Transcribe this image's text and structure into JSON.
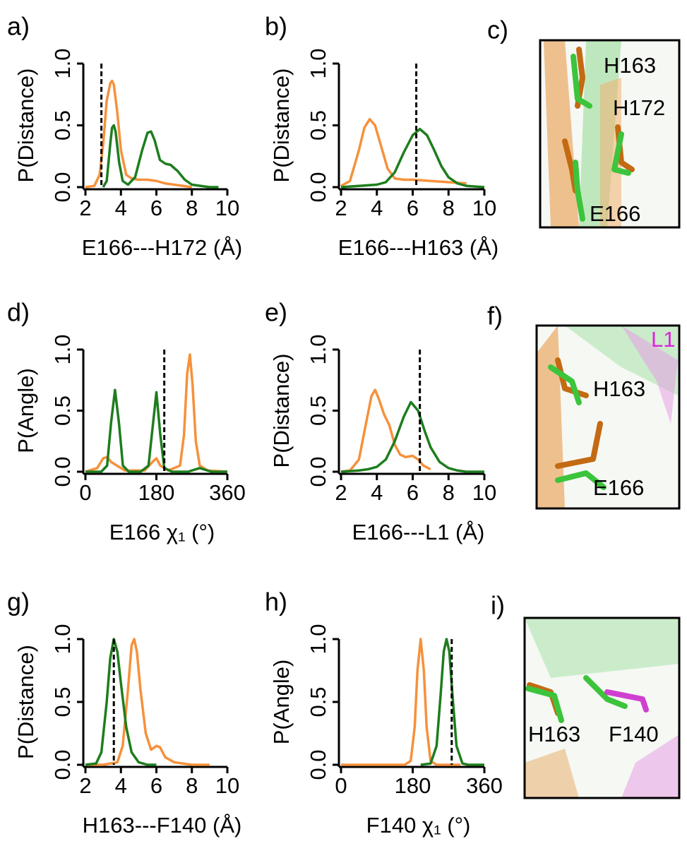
{
  "chart_data": [
    {
      "type": "line",
      "panel": "a)",
      "ylabel": "P(Distance)",
      "xlabel": "E166---H172 (Å)",
      "xlim": [
        2,
        10
      ],
      "xticks": [
        2,
        4,
        6,
        8,
        10
      ],
      "ylim": [
        0,
        1
      ],
      "yticks": [
        {
          "value": 0,
          "label": "0.0"
        },
        0.5,
        {
          "value": 1,
          "label": "1.0"
        }
      ],
      "reference_x": 2.9,
      "series": [
        {
          "color": "#f5913c",
          "x": [
            2,
            2.5,
            2.8,
            3.0,
            3.2,
            3.4,
            3.5,
            3.6,
            3.8,
            4.0,
            4.3,
            4.6,
            5,
            5.5,
            6,
            6.5,
            7,
            7.5,
            8
          ],
          "values": [
            0,
            0.01,
            0.1,
            0.35,
            0.7,
            0.84,
            0.86,
            0.83,
            0.6,
            0.3,
            0.1,
            0.07,
            0.06,
            0.06,
            0.05,
            0.03,
            0.02,
            0.01,
            0
          ]
        },
        {
          "color": "#1e7d1e",
          "x": [
            3.0,
            3.2,
            3.4,
            3.5,
            3.6,
            3.7,
            3.9,
            4.1,
            4.4,
            4.8,
            5.2,
            5.5,
            5.7,
            5.9,
            6.2,
            6.5,
            6.8,
            7.2,
            7.6,
            8,
            8.5,
            9,
            9.5
          ],
          "values": [
            0,
            0.05,
            0.35,
            0.48,
            0.5,
            0.45,
            0.2,
            0.05,
            0.02,
            0.08,
            0.3,
            0.44,
            0.45,
            0.38,
            0.22,
            0.19,
            0.18,
            0.13,
            0.06,
            0.02,
            0.01,
            0,
            0
          ]
        }
      ]
    },
    {
      "type": "line",
      "panel": "b)",
      "ylabel": "P(Distance)",
      "xlabel": "E166---H163 (Å)",
      "xlim": [
        2,
        10
      ],
      "xticks": [
        2,
        4,
        6,
        8,
        10
      ],
      "ylim": [
        0,
        1
      ],
      "yticks": [
        {
          "value": 0,
          "label": "0.0"
        },
        0.5,
        {
          "value": 1,
          "label": "1.0"
        }
      ],
      "reference_x": 6.2,
      "series": [
        {
          "color": "#f5913c",
          "x": [
            2,
            2.5,
            3,
            3.3,
            3.6,
            3.9,
            4.2,
            4.6,
            5,
            5.5,
            6,
            7,
            8,
            9
          ],
          "values": [
            0.01,
            0.05,
            0.3,
            0.48,
            0.55,
            0.5,
            0.35,
            0.15,
            0.07,
            0.06,
            0.06,
            0.05,
            0.04,
            0.03
          ]
        },
        {
          "color": "#1e7d1e",
          "x": [
            2,
            3,
            4,
            4.5,
            5,
            5.5,
            6,
            6.4,
            6.8,
            7.2,
            7.6,
            8,
            8.5,
            9,
            10
          ],
          "values": [
            0,
            0.01,
            0.02,
            0.04,
            0.12,
            0.28,
            0.42,
            0.47,
            0.42,
            0.3,
            0.17,
            0.08,
            0.03,
            0.01,
            0
          ]
        }
      ]
    },
    {
      "type": "line",
      "panel": "d)",
      "ylabel": "P(Angle)",
      "xlabel": "E166 χ₁ (°)",
      "xlim": [
        0,
        360
      ],
      "xticks": [
        0,
        180,
        360
      ],
      "ylim": [
        0,
        1
      ],
      "yticks": [
        {
          "value": 0,
          "label": "0.0"
        },
        0.5,
        {
          "value": 1,
          "label": "1.0"
        }
      ],
      "reference_x": 200,
      "series": [
        {
          "color": "#f5913c",
          "x": [
            0,
            30,
            45,
            55,
            65,
            80,
            100,
            150,
            170,
            180,
            190,
            210,
            240,
            250,
            258,
            265,
            272,
            280,
            290,
            310,
            360
          ],
          "values": [
            0,
            0.03,
            0.11,
            0.12,
            0.08,
            0.05,
            0.01,
            0.01,
            0.08,
            0.11,
            0.05,
            0.01,
            0.05,
            0.3,
            0.8,
            0.96,
            0.7,
            0.25,
            0.05,
            0.01,
            0
          ]
        },
        {
          "color": "#1e7d1e",
          "x": [
            0,
            40,
            55,
            65,
            75,
            85,
            95,
            110,
            140,
            160,
            170,
            180,
            190,
            200,
            220,
            260,
            280,
            290,
            300,
            320,
            360
          ],
          "values": [
            0,
            0,
            0.05,
            0.4,
            0.67,
            0.4,
            0.05,
            0,
            0,
            0.05,
            0.35,
            0.65,
            0.3,
            0.03,
            0,
            0,
            0.02,
            0.03,
            0.02,
            0,
            0
          ]
        }
      ]
    },
    {
      "type": "line",
      "panel": "e)",
      "ylabel": "P(Distance)",
      "xlabel": "E166---L1 (Å)",
      "xlim": [
        2,
        10
      ],
      "xticks": [
        2,
        4,
        6,
        8,
        10
      ],
      "ylim": [
        0,
        1
      ],
      "yticks": [
        {
          "value": 0,
          "label": "0.0"
        },
        0.5,
        {
          "value": 1,
          "label": "1.0"
        }
      ],
      "reference_x": 6.4,
      "series": [
        {
          "color": "#f5913c",
          "x": [
            2,
            2.5,
            3,
            3.4,
            3.7,
            3.9,
            4.1,
            4.4,
            4.7,
            5,
            5.3,
            5.6,
            6,
            6.3,
            6.6,
            7
          ],
          "values": [
            0,
            0.01,
            0.1,
            0.4,
            0.62,
            0.67,
            0.6,
            0.47,
            0.38,
            0.22,
            0.14,
            0.12,
            0.13,
            0.1,
            0.05,
            0.02
          ]
        },
        {
          "color": "#1e7d1e",
          "x": [
            2,
            3,
            3.5,
            4,
            4.5,
            5,
            5.5,
            5.9,
            6.3,
            6.7,
            7,
            7.5,
            8,
            8.5,
            9,
            10
          ],
          "values": [
            0,
            0.01,
            0.02,
            0.04,
            0.1,
            0.25,
            0.45,
            0.57,
            0.5,
            0.32,
            0.2,
            0.08,
            0.03,
            0.01,
            0,
            0
          ]
        }
      ]
    },
    {
      "type": "line",
      "panel": "g)",
      "ylabel": "P(Distance)",
      "xlabel": "H163---F140 (Å)",
      "xlim": [
        2,
        10
      ],
      "xticks": [
        2,
        4,
        6,
        8,
        10
      ],
      "ylim": [
        0,
        1
      ],
      "yticks": [
        {
          "value": 0,
          "label": "0.0"
        },
        0.5,
        {
          "value": 1,
          "label": "1.0"
        }
      ],
      "reference_x": 3.6,
      "series": [
        {
          "color": "#f5913c",
          "x": [
            2,
            3,
            3.8,
            4.1,
            4.4,
            4.6,
            4.75,
            4.9,
            5.1,
            5.4,
            5.7,
            6,
            6.2,
            6.5,
            7,
            7.5,
            8,
            9
          ],
          "values": [
            0,
            0,
            0.02,
            0.15,
            0.6,
            0.95,
            1.0,
            0.9,
            0.6,
            0.25,
            0.12,
            0.15,
            0.14,
            0.06,
            0.02,
            0.01,
            0,
            0
          ]
        },
        {
          "color": "#1e7d1e",
          "x": [
            2,
            2.6,
            2.9,
            3.2,
            3.4,
            3.6,
            3.8,
            4.0,
            4.3,
            4.6,
            5,
            5.5,
            6
          ],
          "values": [
            0,
            0.01,
            0.1,
            0.5,
            0.85,
            1.0,
            0.9,
            0.65,
            0.3,
            0.1,
            0.02,
            0,
            0
          ]
        }
      ]
    },
    {
      "type": "line",
      "panel": "h)",
      "ylabel": "P(Angle)",
      "xlabel": "F140 χ₁ (°)",
      "xlim": [
        0,
        360
      ],
      "xticks": [
        0,
        180,
        360
      ],
      "ylim": [
        0,
        1
      ],
      "yticks": [
        {
          "value": 0,
          "label": "0.0"
        },
        0.5,
        {
          "value": 1,
          "label": "1.0"
        }
      ],
      "reference_x": 278,
      "series": [
        {
          "color": "#f5913c",
          "x": [
            0,
            160,
            175,
            185,
            192,
            200,
            208,
            215,
            225,
            240,
            300
          ],
          "values": [
            0,
            0,
            0.03,
            0.3,
            0.75,
            1.0,
            0.75,
            0.3,
            0.03,
            0,
            0
          ]
        },
        {
          "color": "#1e7d1e",
          "x": [
            200,
            225,
            240,
            250,
            258,
            265,
            272,
            280,
            290,
            305,
            320,
            360
          ],
          "values": [
            0,
            0.01,
            0.15,
            0.55,
            0.9,
            1.0,
            0.9,
            0.55,
            0.15,
            0.01,
            0,
            0
          ]
        }
      ]
    }
  ],
  "images": [
    {
      "panel": "c)",
      "labels": [
        "H163",
        "H172",
        "E166"
      ]
    },
    {
      "panel": "f)",
      "labels": [
        "L1",
        "H163",
        "E166"
      ]
    },
    {
      "panel": "i)",
      "labels": [
        "H163",
        "F140"
      ]
    }
  ]
}
